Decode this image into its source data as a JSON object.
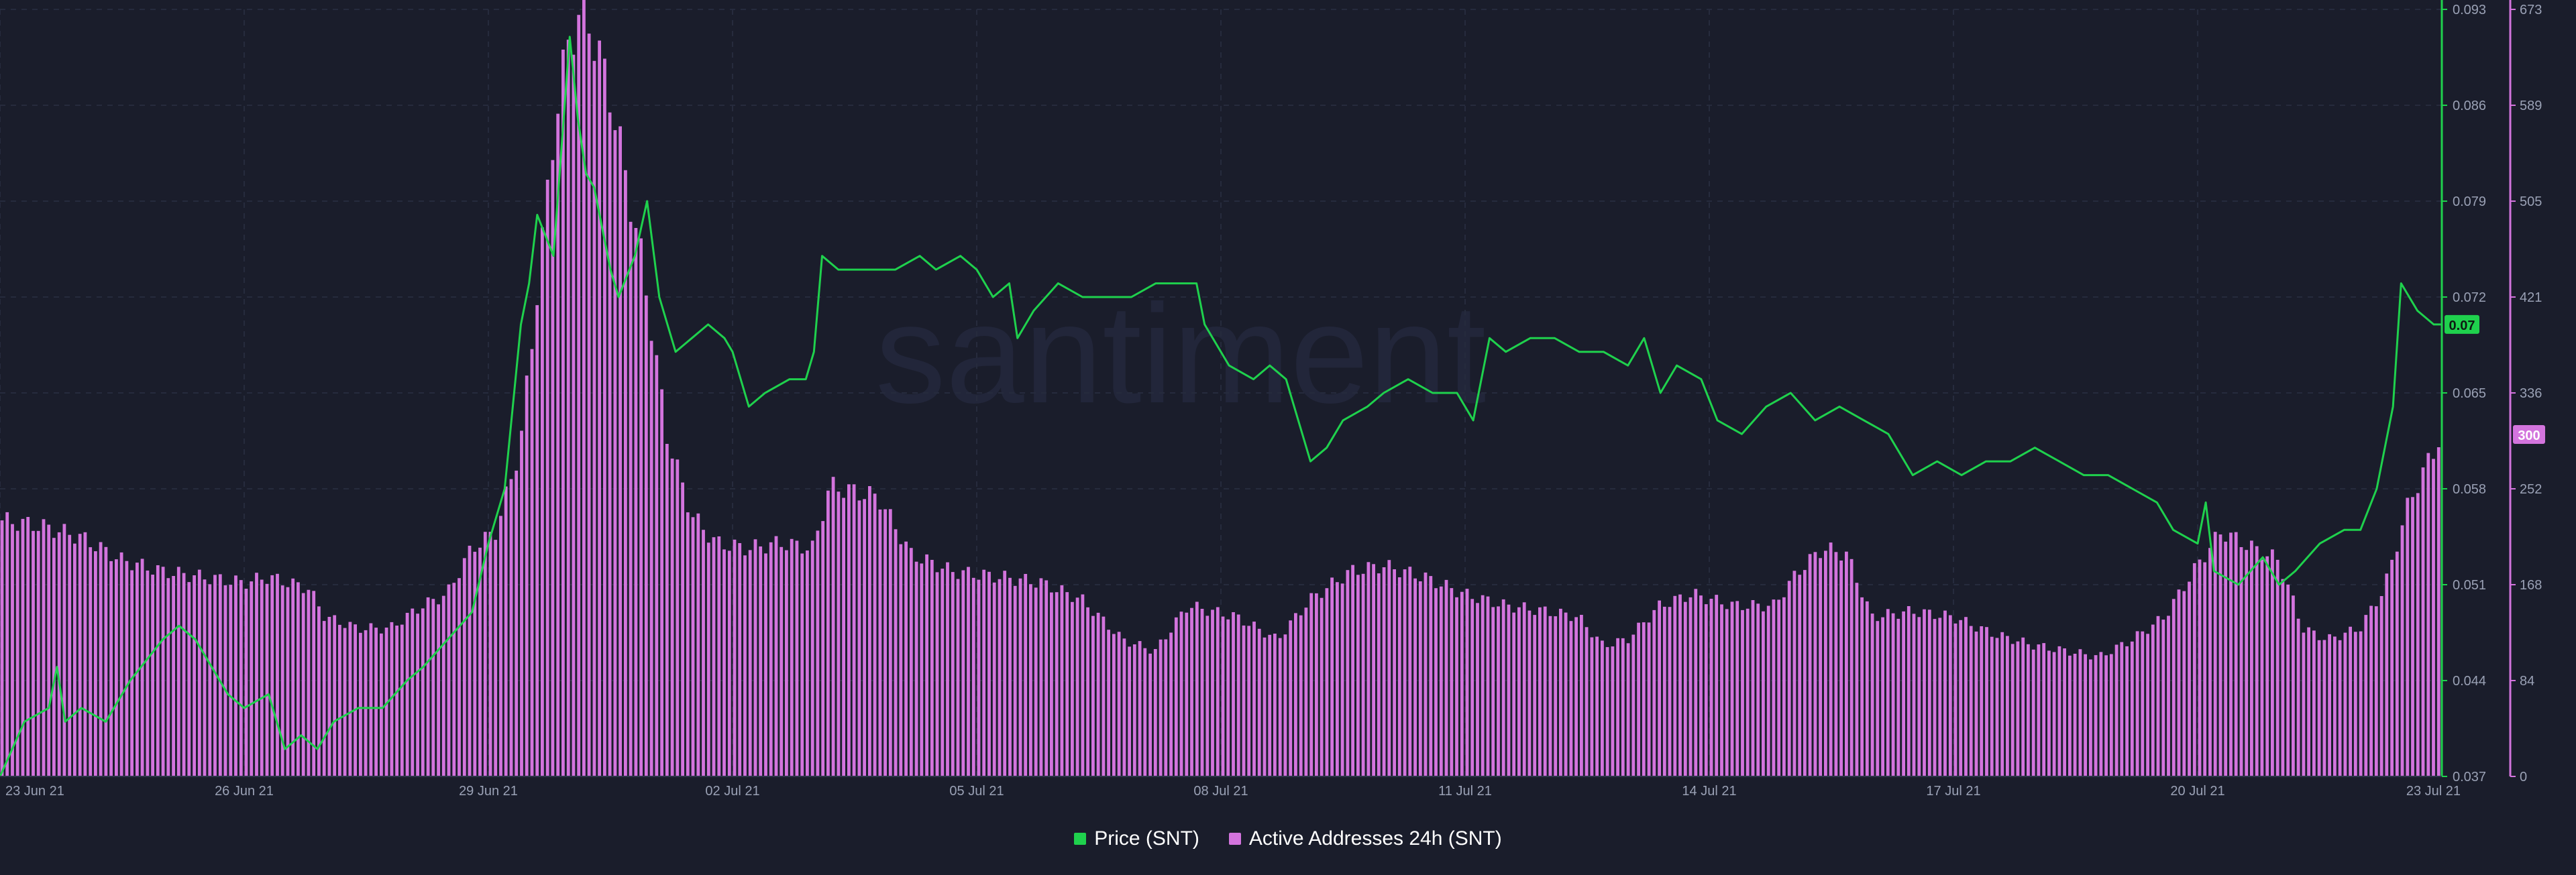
{
  "watermark": "santiment",
  "chart_data": {
    "type": "bar+line",
    "x_axis": {
      "tick_labels": [
        "23 Jun 21",
        "26 Jun 21",
        "29 Jun 21",
        "02 Jul 21",
        "05 Jul 21",
        "08 Jul 21",
        "11 Jul 21",
        "14 Jul 21",
        "17 Jul 21",
        "20 Jul 21",
        "23 Jul 21"
      ],
      "range_days": [
        0,
        30
      ]
    },
    "price_axis": {
      "ticks": [
        "0.093",
        "0.086",
        "0.079",
        "0.072",
        "0.065",
        "0.058",
        "0.051",
        "0.044",
        "0.037"
      ],
      "ylim": [
        0.037,
        0.093
      ]
    },
    "addresses_axis": {
      "ticks": [
        "673",
        "589",
        "505",
        "421",
        "336",
        "252",
        "168",
        "84",
        "0"
      ],
      "ylim": [
        0,
        673
      ]
    },
    "series": [
      {
        "name": "Price (SNT)",
        "kind": "line",
        "axis": "price",
        "color": "#1fd14d",
        "last_value_label": "0.07",
        "points": [
          [
            0,
            0.037
          ],
          [
            0.3,
            0.041
          ],
          [
            0.6,
            0.042
          ],
          [
            0.7,
            0.045
          ],
          [
            0.8,
            0.041
          ],
          [
            1.0,
            0.042
          ],
          [
            1.3,
            0.041
          ],
          [
            1.6,
            0.044
          ],
          [
            2.0,
            0.047
          ],
          [
            2.2,
            0.048
          ],
          [
            2.4,
            0.047
          ],
          [
            2.6,
            0.045
          ],
          [
            2.8,
            0.043
          ],
          [
            3.0,
            0.042
          ],
          [
            3.3,
            0.043
          ],
          [
            3.5,
            0.039
          ],
          [
            3.7,
            0.04
          ],
          [
            3.9,
            0.039
          ],
          [
            4.1,
            0.041
          ],
          [
            4.4,
            0.042
          ],
          [
            4.7,
            0.042
          ],
          [
            5.0,
            0.044
          ],
          [
            5.2,
            0.045
          ],
          [
            5.5,
            0.047
          ],
          [
            5.8,
            0.049
          ],
          [
            6.0,
            0.054
          ],
          [
            6.2,
            0.058
          ],
          [
            6.4,
            0.07
          ],
          [
            6.5,
            0.073
          ],
          [
            6.6,
            0.078
          ],
          [
            6.8,
            0.075
          ],
          [
            7.0,
            0.091
          ],
          [
            7.1,
            0.085
          ],
          [
            7.2,
            0.081
          ],
          [
            7.3,
            0.08
          ],
          [
            7.5,
            0.074
          ],
          [
            7.6,
            0.072
          ],
          [
            7.8,
            0.075
          ],
          [
            7.95,
            0.079
          ],
          [
            8.1,
            0.072
          ],
          [
            8.3,
            0.068
          ],
          [
            8.5,
            0.069
          ],
          [
            8.7,
            0.07
          ],
          [
            8.9,
            0.069
          ],
          [
            9.0,
            0.068
          ],
          [
            9.2,
            0.064
          ],
          [
            9.4,
            0.065
          ],
          [
            9.7,
            0.066
          ],
          [
            9.9,
            0.066
          ],
          [
            10.0,
            0.068
          ],
          [
            10.1,
            0.075
          ],
          [
            10.3,
            0.074
          ],
          [
            10.6,
            0.074
          ],
          [
            11.0,
            0.074
          ],
          [
            11.3,
            0.075
          ],
          [
            11.5,
            0.074
          ],
          [
            11.8,
            0.075
          ],
          [
            12.0,
            0.074
          ],
          [
            12.2,
            0.072
          ],
          [
            12.4,
            0.073
          ],
          [
            12.5,
            0.069
          ],
          [
            12.7,
            0.071
          ],
          [
            13.0,
            0.073
          ],
          [
            13.3,
            0.072
          ],
          [
            13.6,
            0.072
          ],
          [
            13.9,
            0.072
          ],
          [
            14.2,
            0.073
          ],
          [
            14.5,
            0.073
          ],
          [
            14.7,
            0.073
          ],
          [
            14.8,
            0.07
          ],
          [
            15.1,
            0.067
          ],
          [
            15.4,
            0.066
          ],
          [
            15.6,
            0.067
          ],
          [
            15.8,
            0.066
          ],
          [
            15.9,
            0.064
          ],
          [
            16.1,
            0.06
          ],
          [
            16.3,
            0.061
          ],
          [
            16.5,
            0.063
          ],
          [
            16.8,
            0.064
          ],
          [
            17.0,
            0.065
          ],
          [
            17.3,
            0.066
          ],
          [
            17.6,
            0.065
          ],
          [
            17.9,
            0.065
          ],
          [
            18.1,
            0.063
          ],
          [
            18.3,
            0.069
          ],
          [
            18.5,
            0.068
          ],
          [
            18.8,
            0.069
          ],
          [
            19.1,
            0.069
          ],
          [
            19.4,
            0.068
          ],
          [
            19.7,
            0.068
          ],
          [
            20.0,
            0.067
          ],
          [
            20.2,
            0.069
          ],
          [
            20.4,
            0.065
          ],
          [
            20.6,
            0.067
          ],
          [
            20.9,
            0.066
          ],
          [
            21.1,
            0.063
          ],
          [
            21.4,
            0.062
          ],
          [
            21.7,
            0.064
          ],
          [
            22.0,
            0.065
          ],
          [
            22.3,
            0.063
          ],
          [
            22.6,
            0.064
          ],
          [
            22.9,
            0.063
          ],
          [
            23.2,
            0.062
          ],
          [
            23.5,
            0.059
          ],
          [
            23.8,
            0.06
          ],
          [
            24.1,
            0.059
          ],
          [
            24.4,
            0.06
          ],
          [
            24.7,
            0.06
          ],
          [
            25.0,
            0.061
          ],
          [
            25.3,
            0.06
          ],
          [
            25.6,
            0.059
          ],
          [
            25.9,
            0.059
          ],
          [
            26.2,
            0.058
          ],
          [
            26.5,
            0.057
          ],
          [
            26.7,
            0.055
          ],
          [
            27.0,
            0.054
          ],
          [
            27.1,
            0.057
          ],
          [
            27.2,
            0.052
          ],
          [
            27.5,
            0.051
          ],
          [
            27.8,
            0.053
          ],
          [
            28.0,
            0.051
          ],
          [
            28.2,
            0.052
          ],
          [
            28.5,
            0.054
          ],
          [
            28.8,
            0.055
          ],
          [
            29.0,
            0.055
          ],
          [
            29.2,
            0.058
          ],
          [
            29.4,
            0.064
          ],
          [
            29.5,
            0.073
          ],
          [
            29.7,
            0.071
          ],
          [
            29.9,
            0.07
          ],
          [
            30.0,
            0.07
          ]
        ]
      },
      {
        "name": "Active Addresses 24h (SNT)",
        "kind": "bar",
        "axis": "addresses",
        "color": "#d374dd",
        "last_value_label": "300",
        "points": [
          [
            0,
            225
          ],
          [
            0.5,
            220
          ],
          [
            1.0,
            210
          ],
          [
            1.5,
            190
          ],
          [
            2.0,
            180
          ],
          [
            2.5,
            175
          ],
          [
            3.0,
            170
          ],
          [
            3.3,
            175
          ],
          [
            3.8,
            165
          ],
          [
            4.0,
            140
          ],
          [
            4.4,
            130
          ],
          [
            4.8,
            130
          ],
          [
            5.2,
            150
          ],
          [
            5.5,
            160
          ],
          [
            5.8,
            200
          ],
          [
            6.1,
            215
          ],
          [
            6.4,
            290
          ],
          [
            6.6,
            420
          ],
          [
            6.8,
            560
          ],
          [
            7.0,
            650
          ],
          [
            7.2,
            673
          ],
          [
            7.5,
            600
          ],
          [
            7.9,
            450
          ],
          [
            8.2,
            300
          ],
          [
            8.5,
            230
          ],
          [
            8.8,
            205
          ],
          [
            9.2,
            200
          ],
          [
            9.6,
            205
          ],
          [
            10.0,
            200
          ],
          [
            10.2,
            255
          ],
          [
            10.8,
            245
          ],
          [
            11.2,
            195
          ],
          [
            11.7,
            180
          ],
          [
            12.3,
            175
          ],
          [
            12.8,
            170
          ],
          [
            13.3,
            155
          ],
          [
            13.8,
            120
          ],
          [
            14.2,
            110
          ],
          [
            14.6,
            150
          ],
          [
            15.2,
            140
          ],
          [
            15.7,
            120
          ],
          [
            16.1,
            155
          ],
          [
            16.6,
            180
          ],
          [
            17.0,
            185
          ],
          [
            17.5,
            175
          ],
          [
            18.0,
            160
          ],
          [
            18.5,
            150
          ],
          [
            19.0,
            145
          ],
          [
            19.4,
            140
          ],
          [
            19.7,
            115
          ],
          [
            20.0,
            120
          ],
          [
            20.4,
            150
          ],
          [
            20.8,
            160
          ],
          [
            21.3,
            150
          ],
          [
            21.8,
            150
          ],
          [
            22.1,
            180
          ],
          [
            22.4,
            200
          ],
          [
            22.7,
            195
          ],
          [
            23.0,
            140
          ],
          [
            23.5,
            145
          ],
          [
            24.0,
            140
          ],
          [
            24.5,
            125
          ],
          [
            25.0,
            115
          ],
          [
            25.4,
            110
          ],
          [
            25.8,
            105
          ],
          [
            26.2,
            120
          ],
          [
            26.6,
            140
          ],
          [
            27.0,
            185
          ],
          [
            27.3,
            215
          ],
          [
            27.7,
            200
          ],
          [
            28.0,
            190
          ],
          [
            28.3,
            130
          ],
          [
            28.6,
            120
          ],
          [
            29.0,
            130
          ],
          [
            29.3,
            165
          ],
          [
            29.6,
            240
          ],
          [
            30.0,
            300
          ]
        ]
      }
    ],
    "legend": [
      "Price (SNT)",
      "Active Addresses 24h (SNT)"
    ],
    "grid": true,
    "legend_position": "bottom-center"
  }
}
